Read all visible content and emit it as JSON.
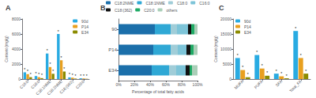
{
  "chart_data": [
    {
      "type": "bar",
      "title": "A",
      "categories": [
        "C16:0",
        "C18:0",
        "C18:1NME",
        "C18:2NME",
        "C18:(362)",
        "C20:0"
      ],
      "series": [
        {
          "name": "90d",
          "color": "#29ABE2",
          "values": [
            900,
            400,
            3400,
            6000,
            220,
            100
          ]
        },
        {
          "name": "P14",
          "color": "#E8A020",
          "values": [
            650,
            250,
            1600,
            2500,
            180,
            80
          ]
        },
        {
          "name": "E34",
          "color": "#8B8B00",
          "values": [
            250,
            120,
            700,
            1000,
            60,
            30
          ]
        }
      ],
      "ylabel": "Content (mg/g)",
      "ylim": [
        0,
        8000
      ],
      "yticks": [
        0,
        2000,
        4000,
        6000,
        8000
      ],
      "grid": false,
      "legend": "upper right",
      "annotations": [
        {
          "text": "*",
          "series": "90d",
          "category": "C16:0"
        },
        {
          "text": "*",
          "series": "90d",
          "category": "C18:0"
        },
        {
          "text": "*",
          "series": "90d",
          "category": "C18:1NME"
        },
        {
          "text": "*",
          "series": "90d",
          "category": "C18:2NME"
        },
        {
          "text": "*",
          "series": "90d",
          "category": "C18:(362)"
        },
        {
          "text": "*",
          "series": "90d",
          "category": "C20:0"
        },
        {
          "text": "*",
          "series": "P14",
          "category": "C16:0"
        },
        {
          "text": "*",
          "series": "P14",
          "category": "C18:0"
        },
        {
          "text": "*",
          "series": "P14",
          "category": "C18:1NME"
        },
        {
          "text": "*",
          "series": "P14",
          "category": "C18:2NME"
        },
        {
          "text": "*",
          "series": "P14",
          "category": "C18:(362)"
        },
        {
          "text": "*",
          "series": "P14",
          "category": "C20:0"
        },
        {
          "text": "*",
          "series": "E34",
          "category": "C16:0"
        },
        {
          "text": "*",
          "series": "E34",
          "category": "C18:0"
        },
        {
          "text": "*",
          "series": "E34",
          "category": "C18:1NME"
        },
        {
          "text": "*",
          "series": "E34",
          "category": "C18:2NME"
        },
        {
          "text": "*",
          "series": "E34",
          "category": "C18:(362)"
        },
        {
          "text": "*",
          "series": "E34",
          "category": "C20:0"
        }
      ]
    },
    {
      "type": "bar",
      "title": "B",
      "orientation": "horizontal",
      "stacked": true,
      "categories": [
        "E34",
        "P14",
        "90"
      ],
      "series": [
        {
          "name": "C18:2NME",
          "color": "#1B6FAA",
          "values": [
            42,
            44,
            46
          ]
        },
        {
          "name": "C18:1NME",
          "color": "#2FA8D5",
          "values": [
            22,
            22,
            20
          ]
        },
        {
          "name": "C18:0",
          "color": "#A0CDD8",
          "values": [
            9,
            9,
            8
          ]
        },
        {
          "name": "C16:0",
          "color": "#7DC4D8",
          "values": [
            12,
            11,
            14
          ]
        },
        {
          "name": "C18:(362)",
          "color": "#111111",
          "values": [
            5,
            5,
            4
          ]
        },
        {
          "name": "C20:0",
          "color": "#1EAA65",
          "values": [
            3,
            4,
            4
          ]
        },
        {
          "name": "others",
          "color": "#AACFB8",
          "values": [
            7,
            5,
            4
          ]
        }
      ],
      "xlabel": "Percentage of total fatty acids",
      "xlim": [
        0,
        100
      ],
      "xticks": [
        {
          "value": 0,
          "label": "0%"
        },
        {
          "value": 20,
          "label": "20%"
        },
        {
          "value": 40,
          "label": "40%"
        },
        {
          "value": 60,
          "label": "60%"
        },
        {
          "value": 80,
          "label": "80%"
        },
        {
          "value": 100,
          "label": "100%"
        }
      ],
      "grid": false,
      "legend": "top"
    },
    {
      "type": "bar",
      "title": "C",
      "categories": [
        "MUFA",
        "PUFA",
        "SFA",
        "Total_FA"
      ],
      "series": [
        {
          "name": "90d",
          "color": "#29ABE2",
          "values": [
            7000,
            8000,
            1800,
            16000
          ]
        },
        {
          "name": "P14",
          "color": "#E8A020",
          "values": [
            3000,
            3500,
            900,
            7000
          ]
        },
        {
          "name": "E34",
          "color": "#8B8B00",
          "values": [
            600,
            1100,
            250,
            1800
          ]
        }
      ],
      "ylabel": "Content (mg/g)",
      "ylim": [
        0,
        20000
      ],
      "yticks": [
        0,
        5000,
        10000,
        15000,
        20000
      ],
      "grid": false,
      "legend": "upper left",
      "annotations": [
        {
          "text": "*",
          "series": "90d",
          "category": "MUFA"
        },
        {
          "text": "*",
          "series": "90d",
          "category": "PUFA"
        },
        {
          "text": "*",
          "series": "90d",
          "category": "SFA"
        },
        {
          "text": "*",
          "series": "90d",
          "category": "Total_FA"
        },
        {
          "text": "*",
          "series": "P14",
          "category": "MUFA"
        },
        {
          "text": "*",
          "series": "P14",
          "category": "PUFA"
        },
        {
          "text": "*",
          "series": "P14",
          "category": "SFA"
        },
        {
          "text": "*",
          "series": "P14",
          "category": "Total_FA"
        },
        {
          "text": "*",
          "series": "E34",
          "category": "MUFA"
        },
        {
          "text": "*",
          "series": "E34",
          "category": "PUFA"
        },
        {
          "text": "*",
          "series": "E34",
          "category": "SFA"
        },
        {
          "text": "*",
          "series": "E34",
          "category": "Total_FA"
        }
      ]
    }
  ]
}
